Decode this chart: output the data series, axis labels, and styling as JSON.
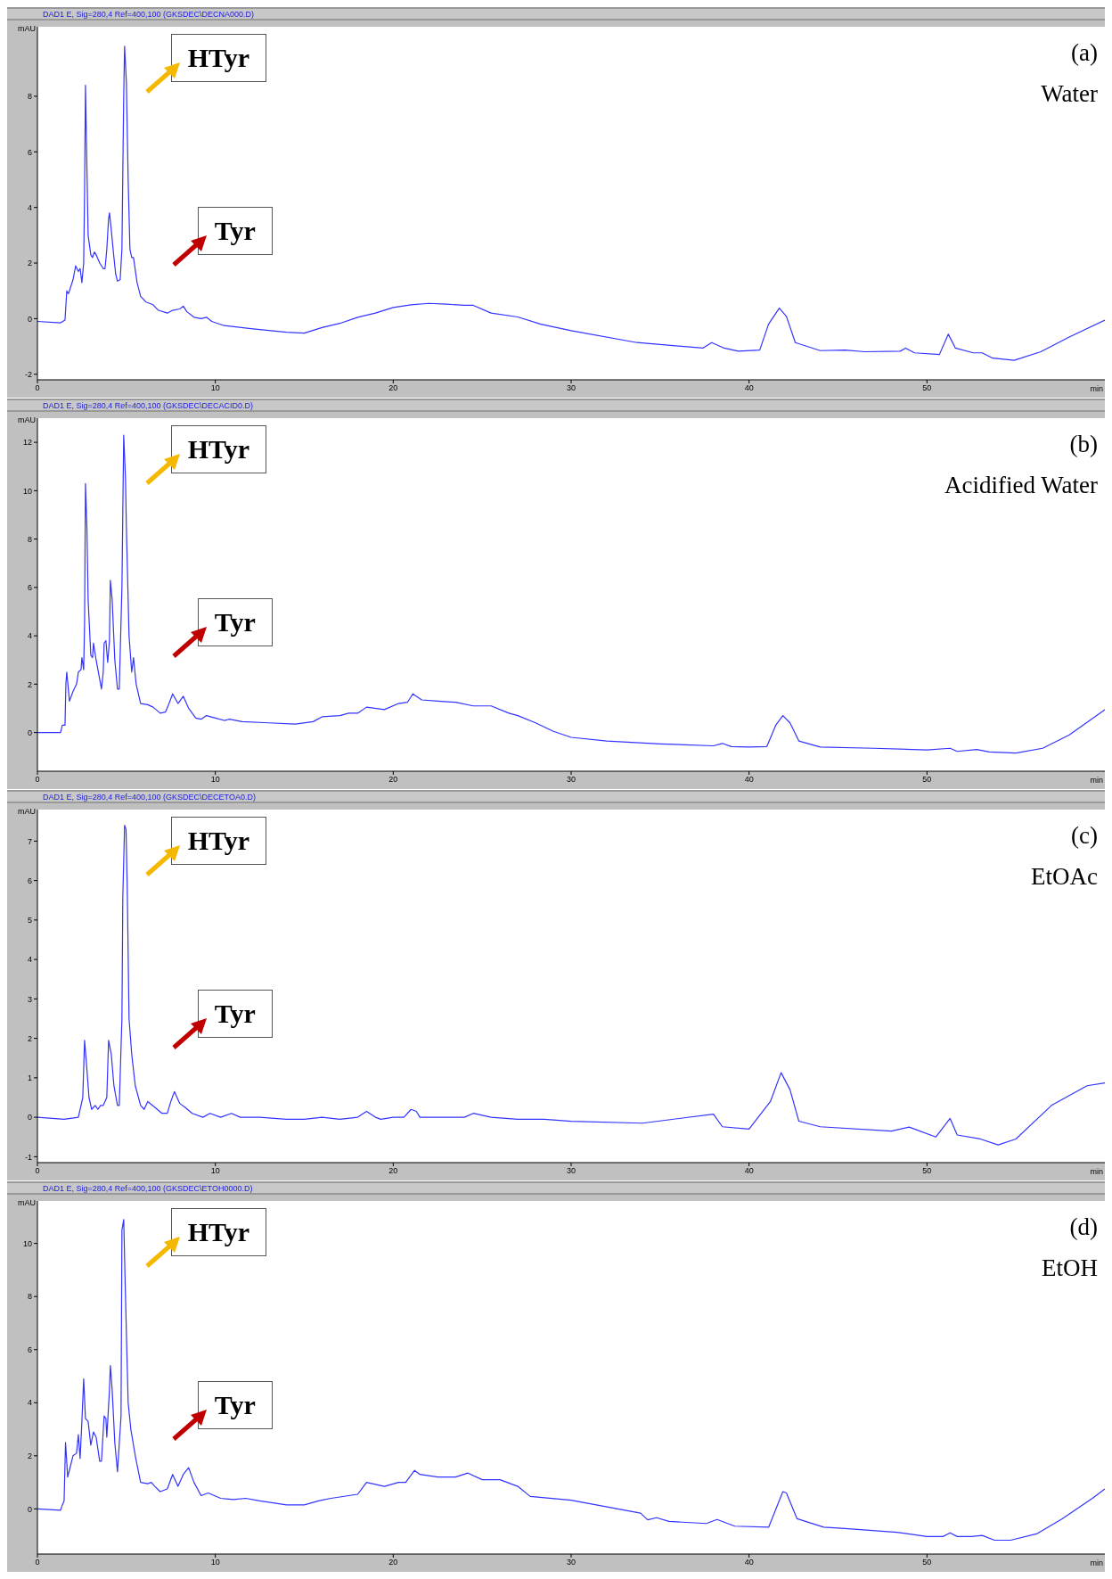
{
  "chart_data": [
    {
      "type": "line",
      "title": "DAD1 E, Sig=280,4 Ref=400,100 (GKSDEC\\DECNA000.D)",
      "xlabel": "min",
      "ylabel": "mAU",
      "xlim": [
        0,
        60
      ],
      "xticks": [
        0,
        10,
        20,
        30,
        40,
        50
      ],
      "ylim": [
        -2.2,
        10.5
      ],
      "yticks": [
        -2,
        0,
        2,
        4,
        6,
        8
      ],
      "marker": "none",
      "line_style": "solid",
      "color": "#3333ff",
      "annotations": [
        "HTyr",
        "Tyr",
        "(a)",
        "Water"
      ],
      "x": [
        0,
        1.3,
        1.55,
        1.65,
        1.75,
        2.0,
        2.15,
        2.3,
        2.4,
        2.5,
        2.6,
        2.65,
        2.7,
        2.78,
        2.85,
        3.0,
        3.1,
        3.2,
        3.3,
        3.5,
        3.7,
        3.8,
        3.9,
        4.0,
        4.05,
        4.15,
        4.3,
        4.4,
        4.5,
        4.65,
        4.75,
        4.85,
        4.9,
        5.0,
        5.1,
        5.2,
        5.3,
        5.4,
        5.6,
        5.8,
        6.1,
        6.5,
        6.8,
        7.3,
        7.6,
        8.0,
        8.2,
        8.4,
        8.8,
        9.2,
        9.5,
        9.8,
        10.5,
        12,
        14,
        15,
        16,
        17,
        18,
        19,
        20,
        21,
        22,
        23,
        24,
        24.5,
        25.5,
        27,
        28.3,
        30,
        33.7,
        37.4,
        37.9,
        38.6,
        39.4,
        40.6,
        41.1,
        41.7,
        42.1,
        42.6,
        44,
        45.4,
        46.5,
        48.5,
        48.8,
        49.3,
        50.7,
        51.2,
        51.6,
        52.6,
        53.1,
        53.7,
        54.9,
        56.4,
        58,
        60
      ],
      "values": [
        -0.1,
        -0.15,
        -0.05,
        1.0,
        0.9,
        1.4,
        1.9,
        1.7,
        1.8,
        1.3,
        2.0,
        4.5,
        8.4,
        5.5,
        3.0,
        2.3,
        2.2,
        2.4,
        2.3,
        2.0,
        1.8,
        1.8,
        2.5,
        3.6,
        3.8,
        3.2,
        2.2,
        1.6,
        1.35,
        1.4,
        2.5,
        8.0,
        9.8,
        8.5,
        5.0,
        2.5,
        2.2,
        2.2,
        1.3,
        0.8,
        0.6,
        0.5,
        0.3,
        0.2,
        0.3,
        0.35,
        0.45,
        0.25,
        0.05,
        0.0,
        0.05,
        -0.1,
        -0.25,
        -0.36,
        -0.49,
        -0.52,
        -0.32,
        -0.17,
        0.05,
        0.2,
        0.4,
        0.5,
        0.55,
        0.52,
        0.48,
        0.48,
        0.2,
        0.06,
        -0.2,
        -0.43,
        -0.86,
        -1.06,
        -0.86,
        -1.06,
        -1.17,
        -1.13,
        -0.19,
        0.38,
        0.08,
        -0.86,
        -1.15,
        -1.13,
        -1.19,
        -1.17,
        -1.06,
        -1.23,
        -1.29,
        -0.56,
        -1.06,
        -1.23,
        -1.23,
        -1.42,
        -1.5,
        -1.19,
        -0.66,
        -0.05
      ]
    },
    {
      "type": "line",
      "title": "DAD1 E, Sig=280,4 Ref=400,100 (GKSDEC\\DECACID0.D)",
      "xlabel": "min",
      "ylabel": "mAU",
      "xlim": [
        0,
        60
      ],
      "xticks": [
        0,
        10,
        20,
        30,
        40,
        50
      ],
      "ylim": [
        -1.6,
        13
      ],
      "yticks": [
        0,
        2,
        4,
        6,
        8,
        10,
        12
      ],
      "marker": "none",
      "line_style": "solid",
      "color": "#3333ff",
      "annotations": [
        "HTyr",
        "Tyr",
        "(b)",
        "Acidified Water"
      ],
      "x": [
        0,
        1.3,
        1.4,
        1.55,
        1.6,
        1.65,
        1.8,
        2.0,
        2.2,
        2.3,
        2.45,
        2.5,
        2.6,
        2.65,
        2.7,
        2.78,
        2.85,
        3.0,
        3.1,
        3.15,
        3.3,
        3.5,
        3.6,
        3.7,
        3.75,
        3.85,
        3.95,
        4.05,
        4.1,
        4.2,
        4.35,
        4.5,
        4.6,
        4.75,
        4.85,
        4.95,
        5.0,
        5.15,
        5.3,
        5.4,
        5.55,
        5.8,
        6.2,
        6.5,
        6.9,
        7.2,
        7.4,
        7.6,
        7.9,
        8.2,
        8.5,
        8.9,
        9.2,
        9.5,
        10,
        10.5,
        10.8,
        11.5,
        13,
        14.5,
        15.5,
        16,
        17,
        17.5,
        18,
        18.5,
        19.5,
        20.3,
        20.8,
        21.1,
        21.6,
        22.5,
        23.5,
        24.5,
        25.5,
        26.5,
        27,
        28,
        29,
        30,
        32,
        35,
        38,
        38.5,
        39,
        40,
        41,
        41.5,
        41.9,
        42.3,
        42.8,
        44,
        47,
        50,
        51.3,
        51.7,
        52.8,
        53.5,
        55,
        56.5,
        58,
        60
      ],
      "values": [
        0,
        0,
        0.3,
        0.3,
        2.0,
        2.5,
        1.3,
        1.7,
        2.0,
        2.5,
        2.6,
        3.1,
        2.6,
        4.5,
        10.3,
        8.5,
        5.5,
        3.2,
        3.1,
        3.7,
        3.0,
        2.2,
        1.8,
        2.5,
        3.7,
        3.8,
        2.9,
        3.8,
        6.3,
        5.5,
        3.0,
        1.8,
        1.8,
        6.0,
        12.3,
        10.5,
        8.5,
        4.0,
        2.5,
        3.1,
        2.0,
        1.2,
        1.15,
        1.05,
        0.8,
        0.85,
        1.2,
        1.6,
        1.2,
        1.5,
        1.0,
        0.6,
        0.55,
        0.7,
        0.6,
        0.5,
        0.55,
        0.45,
        0.4,
        0.35,
        0.45,
        0.65,
        0.7,
        0.8,
        0.8,
        1.05,
        0.95,
        1.2,
        1.25,
        1.6,
        1.35,
        1.3,
        1.25,
        1.1,
        1.1,
        0.8,
        0.7,
        0.4,
        0.05,
        -0.2,
        -0.35,
        -0.47,
        -0.55,
        -0.45,
        -0.58,
        -0.6,
        -0.58,
        0.3,
        0.7,
        0.4,
        -0.35,
        -0.6,
        -0.65,
        -0.72,
        -0.65,
        -0.78,
        -0.7,
        -0.8,
        -0.85,
        -0.65,
        -0.1,
        0.94
      ]
    },
    {
      "type": "line",
      "title": "DAD1 E, Sig=280,4 Ref=400,100 (GKSDEC\\DECETOA0.D)",
      "xlabel": "min",
      "ylabel": "mAU",
      "xlim": [
        0,
        60
      ],
      "xticks": [
        0,
        10,
        20,
        30,
        40,
        50
      ],
      "ylim": [
        -1.15,
        7.8
      ],
      "yticks": [
        -1,
        0,
        1,
        2,
        3,
        4,
        5,
        6,
        7
      ],
      "marker": "none",
      "line_style": "solid",
      "color": "#3333ff",
      "annotations": [
        "HTyr",
        "Tyr",
        "(c)",
        "EtOAc"
      ],
      "x": [
        0,
        1.5,
        2.3,
        2.55,
        2.65,
        2.75,
        2.9,
        3.05,
        3.25,
        3.4,
        3.55,
        3.7,
        3.9,
        4.0,
        4.15,
        4.3,
        4.5,
        4.6,
        4.75,
        4.8,
        4.9,
        4.98,
        5.05,
        5.15,
        5.3,
        5.5,
        5.8,
        6.0,
        6.2,
        6.6,
        7.0,
        7.3,
        7.5,
        7.7,
        8.0,
        8.3,
        8.7,
        9.3,
        9.7,
        10.3,
        10.9,
        11.4,
        12.5,
        14,
        15,
        16,
        17,
        18,
        18.5,
        19,
        19.3,
        20,
        20.6,
        21,
        21.3,
        21.5,
        22.5,
        24,
        24.5,
        25.5,
        27,
        28.5,
        30,
        34,
        38,
        38.5,
        40,
        41.2,
        41.8,
        42.3,
        42.8,
        44,
        48,
        49,
        50.5,
        51.3,
        51.7,
        53,
        54,
        55,
        57,
        59,
        60
      ],
      "values": [
        0,
        -0.05,
        0,
        0.5,
        1.95,
        1.4,
        0.5,
        0.2,
        0.3,
        0.2,
        0.3,
        0.3,
        0.5,
        1.95,
        1.6,
        0.8,
        0.3,
        0.3,
        2.5,
        5.6,
        7.4,
        7.3,
        5.8,
        2.5,
        1.6,
        0.8,
        0.3,
        0.2,
        0.4,
        0.25,
        0.1,
        0.1,
        0.4,
        0.65,
        0.35,
        0.25,
        0.1,
        0,
        0.1,
        0,
        0.1,
        0,
        0,
        -0.05,
        -0.05,
        0,
        -0.05,
        0,
        0.15,
        0,
        -0.05,
        0,
        0,
        0.2,
        0.15,
        0,
        0,
        0,
        0.1,
        0,
        -0.05,
        -0.05,
        -0.1,
        -0.15,
        0.08,
        -0.24,
        -0.3,
        0.4,
        1.13,
        0.7,
        -0.1,
        -0.24,
        -0.35,
        -0.25,
        -0.5,
        -0.03,
        -0.45,
        -0.55,
        -0.7,
        -0.55,
        0.3,
        0.8,
        0.87
      ]
    },
    {
      "type": "line",
      "title": "DAD1 E, Sig=280,4 Ref=400,100 (GKSDEC\\ETOH0000.D)",
      "xlabel": "min",
      "ylabel": "mAU",
      "xlim": [
        0,
        60
      ],
      "xticks": [
        0,
        10,
        20,
        30,
        40,
        50
      ],
      "ylim": [
        -1.7,
        11.6
      ],
      "yticks": [
        0,
        2,
        4,
        6,
        8,
        10
      ],
      "marker": "none",
      "line_style": "solid",
      "color": "#3333ff",
      "annotations": [
        "HTyr",
        "Tyr",
        "(d)",
        "EtOH"
      ],
      "x": [
        0,
        1.3,
        1.4,
        1.5,
        1.58,
        1.7,
        1.85,
        2.0,
        2.2,
        2.3,
        2.4,
        2.5,
        2.6,
        2.7,
        2.85,
        3.0,
        3.15,
        3.3,
        3.5,
        3.6,
        3.75,
        3.85,
        3.9,
        4.05,
        4.1,
        4.2,
        4.35,
        4.5,
        4.7,
        4.75,
        4.85,
        4.95,
        5.1,
        5.25,
        5.35,
        5.5,
        5.8,
        6.2,
        6.4,
        6.6,
        6.9,
        7.3,
        7.6,
        7.9,
        8.2,
        8.5,
        8.8,
        9.2,
        9.6,
        10.3,
        11,
        11.7,
        12.5,
        14,
        15,
        15.8,
        16.5,
        17,
        18,
        18.5,
        19.5,
        20.3,
        20.7,
        21.2,
        21.5,
        22.5,
        23.5,
        24.2,
        25,
        26,
        27,
        27.7,
        30,
        33.9,
        34.3,
        34.8,
        35.5,
        37.6,
        38.2,
        39.2,
        41.1,
        41.9,
        42.1,
        42.7,
        44.2,
        45.4,
        48.3,
        50,
        50.9,
        51.3,
        51.7,
        52.5,
        53.1,
        53.8,
        54.7,
        56.2,
        57.6,
        59.3,
        60
      ],
      "values": [
        0,
        -0.05,
        0.15,
        0.3,
        2.5,
        1.2,
        1.6,
        2.0,
        2.1,
        2.8,
        1.9,
        3.3,
        4.9,
        3.4,
        3.3,
        2.4,
        2.9,
        2.7,
        1.8,
        1.8,
        3.5,
        3.4,
        2.7,
        4.5,
        5.4,
        4.5,
        2.5,
        1.4,
        3.5,
        10.5,
        10.9,
        8.0,
        4.0,
        3.0,
        2.6,
        2.0,
        1.0,
        0.95,
        1.0,
        0.85,
        0.65,
        0.75,
        1.3,
        0.85,
        1.3,
        1.55,
        1.0,
        0.5,
        0.6,
        0.4,
        0.35,
        0.4,
        0.3,
        0.15,
        0.15,
        0.3,
        0.4,
        0.45,
        0.55,
        1.0,
        0.85,
        1.0,
        1.0,
        1.45,
        1.3,
        1.2,
        1.2,
        1.35,
        1.1,
        1.1,
        0.85,
        0.47,
        0.33,
        -0.16,
        -0.41,
        -0.33,
        -0.47,
        -0.55,
        -0.4,
        -0.65,
        -0.69,
        0.65,
        0.6,
        -0.37,
        -0.69,
        -0.74,
        -0.88,
        -1.04,
        -1.04,
        -0.9,
        -1.04,
        -1.04,
        -1.0,
        -1.18,
        -1.18,
        -0.93,
        -0.37,
        0.4,
        0.75
      ]
    }
  ]
}
